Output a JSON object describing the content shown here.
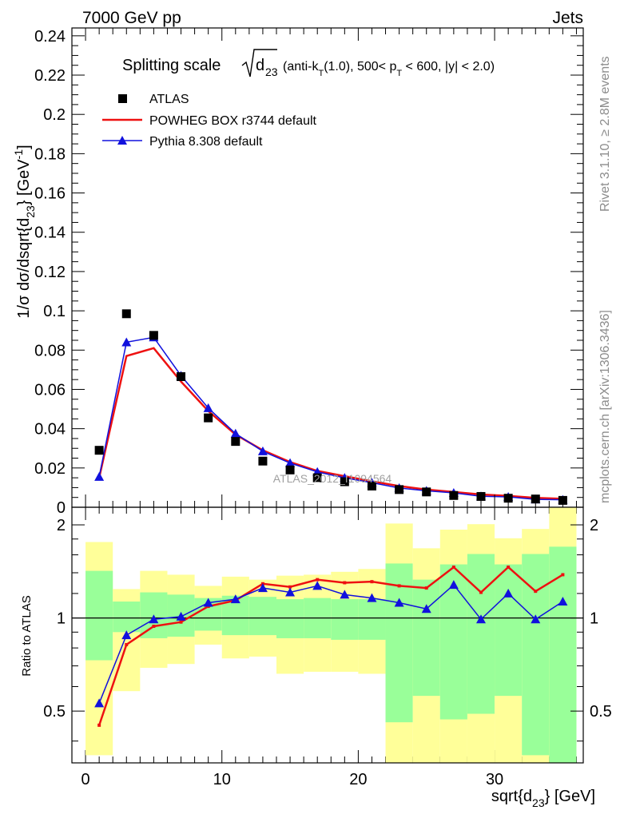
{
  "header": {
    "left": "7000 GeV pp",
    "right": "Jets"
  },
  "side_labels": {
    "rivet": "Rivet 3.1.10, ≥ 2.8M events",
    "mcplots": "mcplots.cern.ch [arXiv:1306.3436]"
  },
  "watermark": "ATLAS_2012_I1094564",
  "chart_data": {
    "type": "scatter",
    "title": {
      "main": "Splitting scale",
      "sqrt_sym": "d",
      "sqrt_sub": "23",
      "cut_open": "(anti-k",
      "cut_sub": "T",
      "cut_mid": "(1.0), 500< p",
      "cut_sub2": "T",
      "cut_close": " < 600, |y| < 2.0)"
    },
    "xlabel": {
      "pre": "sqrt{d",
      "sub": "23",
      "post": "} [GeV]"
    },
    "ylabel": {
      "pre": "1/σ dσ/dsqrt{d",
      "sub": "23",
      "mid": "} [GeV",
      "sup": "-1",
      "post": "]"
    },
    "ratio_ylabel": "Ratio to ATLAS",
    "xlim": [
      -1,
      36.5
    ],
    "ylim": [
      0,
      0.244
    ],
    "ratio_ylim": [
      0.34,
      2.28
    ],
    "x_ticks": [
      "0",
      "10",
      "20",
      "30"
    ],
    "y_ticks": [
      "0",
      "0.02",
      "0.04",
      "0.06",
      "0.08",
      "0.1",
      "0.12",
      "0.14",
      "0.16",
      "0.18",
      "0.2",
      "0.22",
      "0.24"
    ],
    "ratio_ticks": [
      "0.5",
      "1",
      "2"
    ],
    "legend": {
      "position": "top-left",
      "entries": [
        "ATLAS",
        "POWHEG BOX r3744 default",
        "Pythia 8.308 default"
      ]
    },
    "bins": [
      [
        0,
        2
      ],
      [
        2,
        4
      ],
      [
        4,
        6
      ],
      [
        6,
        8
      ],
      [
        8,
        10
      ],
      [
        10,
        12
      ],
      [
        12,
        14
      ],
      [
        14,
        16
      ],
      [
        16,
        18
      ],
      [
        18,
        20
      ],
      [
        20,
        22
      ],
      [
        22,
        24
      ],
      [
        24,
        26
      ],
      [
        26,
        28
      ],
      [
        28,
        30
      ],
      [
        30,
        32
      ],
      [
        32,
        34
      ],
      [
        34,
        36
      ]
    ],
    "x": [
      1,
      3,
      5,
      7,
      9,
      11,
      13,
      15,
      17,
      19,
      21,
      23,
      25,
      27,
      29,
      31,
      33,
      35
    ],
    "series": [
      {
        "name": "ATLAS",
        "color": "#000000",
        "marker": "square",
        "values": [
          0.029,
          0.0985,
          0.0875,
          0.0665,
          0.0455,
          0.0335,
          0.0235,
          0.019,
          0.015,
          0.013,
          0.0108,
          0.009,
          0.0078,
          0.006,
          0.0055,
          0.0046,
          0.0042,
          0.0035
        ]
      },
      {
        "name": "POWHEG BOX r3744 default",
        "color": "#ee1111",
        "marker": "line",
        "values": [
          0.015,
          0.077,
          0.081,
          0.064,
          0.049,
          0.037,
          0.029,
          0.023,
          0.0185,
          0.0158,
          0.0132,
          0.0108,
          0.009,
          0.0078,
          0.0065,
          0.0058,
          0.0048,
          0.0043
        ]
      },
      {
        "name": "Pythia 8.308 default",
        "color": "#1111dd",
        "marker": "triangle",
        "values": [
          0.0155,
          0.084,
          0.0865,
          0.067,
          0.0505,
          0.0375,
          0.0285,
          0.0225,
          0.018,
          0.015,
          0.0125,
          0.0098,
          0.0084,
          0.0073,
          0.0056,
          0.0053,
          0.004,
          0.0038
        ]
      }
    ],
    "ratio": {
      "reference": 1,
      "series": [
        {
          "name": "POWHEG BOX r3744 default",
          "values": [
            0.45,
            0.82,
            0.94,
            0.97,
            1.09,
            1.14,
            1.29,
            1.26,
            1.33,
            1.3,
            1.31,
            1.27,
            1.25,
            1.46,
            1.21,
            1.46,
            1.22,
            1.38
          ]
        },
        {
          "name": "Pythia 8.308 default",
          "values": [
            0.53,
            0.88,
            0.99,
            1.01,
            1.12,
            1.15,
            1.25,
            1.21,
            1.27,
            1.19,
            1.16,
            1.12,
            1.07,
            1.28,
            0.99,
            1.2,
            0.99,
            1.13
          ]
        }
      ],
      "band_inner": [
        [
          0.73,
          1.42
        ],
        [
          0.9,
          1.13
        ],
        [
          0.86,
          1.21
        ],
        [
          0.87,
          1.19
        ],
        [
          0.91,
          1.16
        ],
        [
          0.88,
          1.18
        ],
        [
          0.88,
          1.17
        ],
        [
          0.86,
          1.15
        ],
        [
          0.86,
          1.16
        ],
        [
          0.85,
          1.15
        ],
        [
          0.85,
          1.15
        ],
        [
          0.46,
          1.5
        ],
        [
          0.56,
          1.33
        ],
        [
          0.47,
          1.49
        ],
        [
          0.49,
          1.61
        ],
        [
          0.56,
          1.49
        ],
        [
          0.36,
          1.61
        ],
        [
          0.34,
          1.7
        ]
      ],
      "band_outer": [
        [
          0.36,
          1.76
        ],
        [
          0.58,
          1.24
        ],
        [
          0.69,
          1.42
        ],
        [
          0.71,
          1.38
        ],
        [
          0.82,
          1.27
        ],
        [
          0.74,
          1.36
        ],
        [
          0.75,
          1.33
        ],
        [
          0.66,
          1.37
        ],
        [
          0.67,
          1.38
        ],
        [
          0.67,
          1.41
        ],
        [
          0.66,
          1.44
        ],
        [
          0.34,
          2.02
        ],
        [
          0.34,
          1.68
        ],
        [
          0.34,
          1.93
        ],
        [
          0.34,
          2.01
        ],
        [
          0.34,
          1.81
        ],
        [
          0.34,
          1.94
        ],
        [
          0.34,
          2.28
        ]
      ]
    }
  }
}
